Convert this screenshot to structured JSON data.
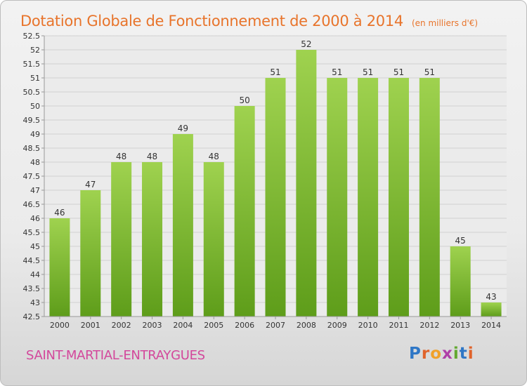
{
  "title": "Dotation Globale de Fonctionnement de 2000 à 2014",
  "unit": "(en milliers d'€)",
  "commune": "SAINT-MARTIAL-ENTRAYGUES",
  "logo": {
    "letters": [
      "P",
      "r",
      "o",
      "x",
      "i",
      "t",
      "i"
    ],
    "colors": [
      "#2f77c6",
      "#e0632b",
      "#f0a12a",
      "#b03fa8",
      "#62a830",
      "#2f77c6",
      "#e0632b"
    ]
  },
  "chart_data": {
    "type": "bar",
    "categories": [
      "2000",
      "2001",
      "2002",
      "2003",
      "2004",
      "2005",
      "2006",
      "2007",
      "2008",
      "2009",
      "2010",
      "2011",
      "2012",
      "2013",
      "2014"
    ],
    "values": [
      46,
      47,
      48,
      48,
      49,
      48,
      50,
      51,
      52,
      51,
      51,
      51,
      51,
      45,
      43
    ],
    "data_labels": [
      "46",
      "47",
      "48",
      "48",
      "49",
      "48",
      "50",
      "51",
      "52",
      "51",
      "51",
      "51",
      "51",
      "45",
      "43"
    ],
    "y_ticks": [
      "42.5",
      "43",
      "43.5",
      "44",
      "44.5",
      "45",
      "45.5",
      "46",
      "46.5",
      "47",
      "47.5",
      "48",
      "48.5",
      "49",
      "49.5",
      "50",
      "50.5",
      "51",
      "51.5",
      "52",
      "52.5"
    ],
    "ylim": [
      42.5,
      52.5
    ],
    "grid": true,
    "bar_color": "#8cc63f",
    "bar_color_dark": "#5e9d1a"
  }
}
